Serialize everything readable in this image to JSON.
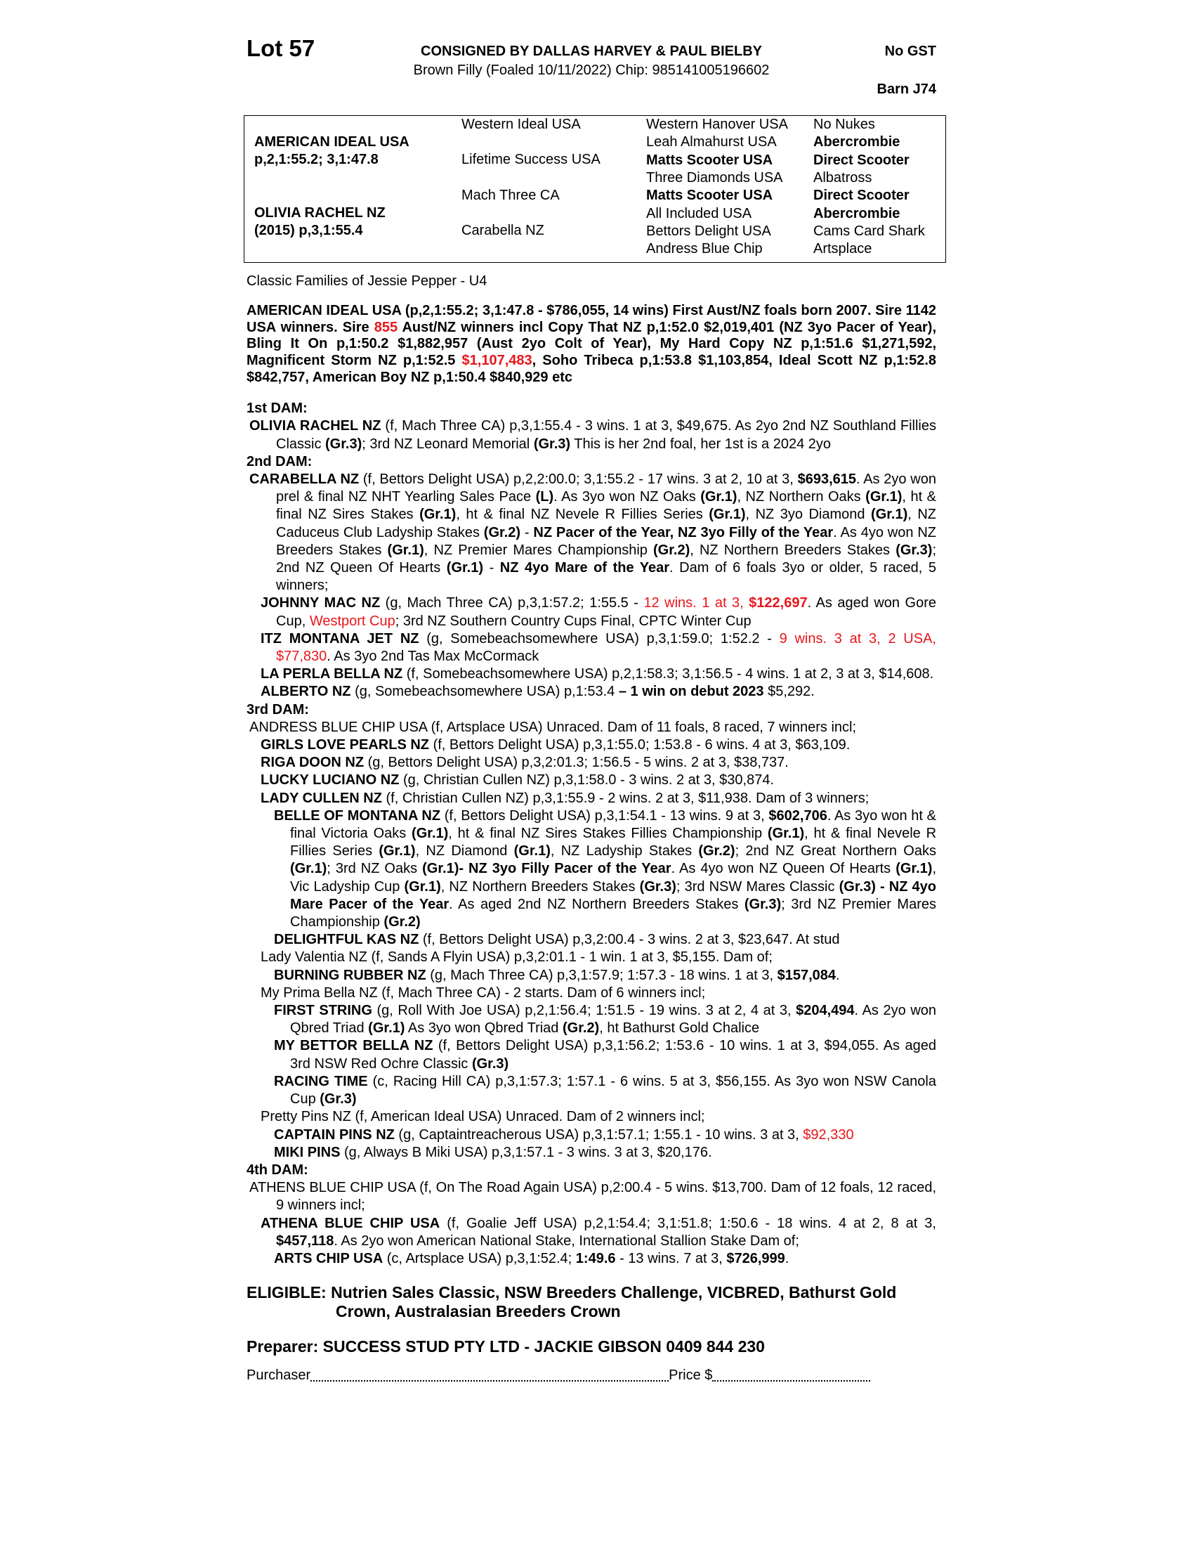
{
  "header": {
    "lot": "Lot 57",
    "consignor": "CONSIGNED BY DALLAS HARVEY & PAUL BIELBY",
    "description": "Brown Filly (Foaled 10/11/2022) Chip: 985141005196602",
    "gst": "No GST",
    "barn": "Barn J74"
  },
  "pedigree": {
    "sire": "AMERICAN IDEAL USA",
    "sire_record": "p,2,1:55.2; 3,1:47.8",
    "dam": "OLIVIA RACHEL NZ",
    "dam_record": "(2015) p,3,1:55.4",
    "gen2": [
      "Western Ideal USA",
      "Lifetime Success USA",
      "Mach Three CA",
      "Carabella NZ"
    ],
    "gen3": [
      {
        "t": "Western Hanover USA",
        "b": false
      },
      {
        "t": "Leah Almahurst USA",
        "b": false
      },
      {
        "t": "Matts Scooter USA",
        "b": true
      },
      {
        "t": "Three Diamonds USA",
        "b": false
      },
      {
        "t": "Matts Scooter USA",
        "b": true
      },
      {
        "t": "All Included USA",
        "b": false
      },
      {
        "t": "Bettors Delight USA",
        "b": false
      },
      {
        "t": "Andress Blue Chip",
        "b": false
      }
    ],
    "gen4": [
      {
        "t": "No Nukes",
        "b": false
      },
      {
        "t": "Abercrombie",
        "b": true
      },
      {
        "t": "Direct Scooter",
        "b": true
      },
      {
        "t": "Albatross",
        "b": false
      },
      {
        "t": "Direct Scooter",
        "b": true
      },
      {
        "t": "Abercrombie",
        "b": true
      },
      {
        "t": "Cams Card Shark",
        "b": false
      },
      {
        "t": "Artsplace",
        "b": false
      }
    ]
  },
  "family": "Classic Families of Jessie Pepper - U4",
  "sire_para": [
    {
      "t": "AMERICAN IDEAL USA (p,2,1:55.2; 3,1:47.8 - $786,055, 14 wins) First Aust/NZ foals born 2007. Sire 1142 USA winners. Sire ",
      "s": ""
    },
    {
      "t": "855",
      "s": "r"
    },
    {
      "t": " Aust/NZ winners incl Copy That NZ p,1:52.0 $2,019,401 (NZ 3yo Pacer of Year), Bling It On p,1:50.2 $1,882,957 (Aust 2yo Colt of Year), My Hard Copy NZ p,1:51.6 $1,271,592, Magnificent Storm NZ p,1:52.5 ",
      "s": ""
    },
    {
      "t": "$1,107,483",
      "s": "r"
    },
    {
      "t": ", Soho Tribeca p,1:53.8 $1,103,854, Ideal Scott NZ p,1:52.8 $842,757, American Boy NZ p,1:50.4 $840,929 etc",
      "s": ""
    }
  ],
  "colors": {
    "highlight_red": "#e8161b"
  },
  "dams": [
    {
      "heading": "1st DAM:",
      "entries": [
        {
          "level": 0,
          "segs": [
            {
              "t": "OLIVIA RACHEL NZ",
              "s": "b"
            },
            {
              "t": " (f, Mach Three CA) p,3,1:55.4 - 3 wins. 1 at 3, $49,675. As 2yo 2nd NZ Southland Fillies Classic ",
              "s": ""
            },
            {
              "t": "(Gr.3)",
              "s": "b"
            },
            {
              "t": "; 3rd NZ Leonard Memorial ",
              "s": ""
            },
            {
              "t": "(Gr.3)",
              "s": "b"
            },
            {
              "t": " This is her 2nd foal, her 1st is a 2024 2yo",
              "s": ""
            }
          ]
        }
      ]
    },
    {
      "heading": "2nd DAM:",
      "entries": [
        {
          "level": 0,
          "segs": [
            {
              "t": "CARABELLA NZ",
              "s": "b"
            },
            {
              "t": " (f, Bettors Delight USA) p,2,2:00.0; 3,1:55.2 - 17 wins. 3 at 2, 10 at 3, ",
              "s": ""
            },
            {
              "t": "$693,615",
              "s": "b"
            },
            {
              "t": ". As 2yo won prel & final NZ NHT Yearling Sales Pace ",
              "s": ""
            },
            {
              "t": "(L)",
              "s": "b"
            },
            {
              "t": ". As 3yo won NZ Oaks ",
              "s": ""
            },
            {
              "t": "(Gr.1)",
              "s": "b"
            },
            {
              "t": ", NZ Northern Oaks ",
              "s": ""
            },
            {
              "t": "(Gr.1)",
              "s": "b"
            },
            {
              "t": ", ht & final NZ Sires Stakes ",
              "s": ""
            },
            {
              "t": "(Gr.1)",
              "s": "b"
            },
            {
              "t": ", ht & final NZ Nevele R Fillies Series ",
              "s": ""
            },
            {
              "t": "(Gr.1)",
              "s": "b"
            },
            {
              "t": ", NZ 3yo Diamond ",
              "s": ""
            },
            {
              "t": "(Gr.1)",
              "s": "b"
            },
            {
              "t": ", NZ Caduceus Club Ladyship Stakes ",
              "s": ""
            },
            {
              "t": "(Gr.2)",
              "s": "b"
            },
            {
              "t": " - ",
              "s": ""
            },
            {
              "t": "NZ Pacer of the Year, NZ 3yo Filly of the Year",
              "s": "b"
            },
            {
              "t": ". As 4yo won NZ Breeders Stakes ",
              "s": ""
            },
            {
              "t": "(Gr.1)",
              "s": "b"
            },
            {
              "t": ", NZ Premier Mares Championship ",
              "s": ""
            },
            {
              "t": "(Gr.2)",
              "s": "b"
            },
            {
              "t": ", NZ Northern Breeders Stakes ",
              "s": ""
            },
            {
              "t": "(Gr.3)",
              "s": "b"
            },
            {
              "t": "; 2nd NZ Queen Of Hearts ",
              "s": ""
            },
            {
              "t": "(Gr.1)",
              "s": "b"
            },
            {
              "t": " - ",
              "s": ""
            },
            {
              "t": "NZ 4yo Mare of the Year",
              "s": "b"
            },
            {
              "t": ". Dam of 6 foals 3yo or older, 5 raced, 5 winners;",
              "s": ""
            }
          ]
        },
        {
          "level": 1,
          "segs": [
            {
              "t": "JOHNNY MAC NZ",
              "s": "b"
            },
            {
              "t": " (g, Mach Three CA) p,3,1:57.2; 1:55.5 - ",
              "s": ""
            },
            {
              "t": "12 wins. 1 at 3, ",
              "s": "r"
            },
            {
              "t": "$122,697",
              "s": "br"
            },
            {
              "t": ". As aged won Gore Cup, ",
              "s": ""
            },
            {
              "t": "Westport Cup",
              "s": "r"
            },
            {
              "t": "; 3rd NZ Southern Country Cups Final, CPTC Winter Cup",
              "s": ""
            }
          ]
        },
        {
          "level": 1,
          "segs": [
            {
              "t": "ITZ MONTANA JET NZ",
              "s": "b"
            },
            {
              "t": " (g, Somebeachsomewhere USA) p,3,1:59.0; 1:52.2 - ",
              "s": ""
            },
            {
              "t": "9 wins. 3 at 3, 2 USA, $77,830",
              "s": "r"
            },
            {
              "t": ". As 3yo 2nd Tas Max McCormack",
              "s": ""
            }
          ]
        },
        {
          "level": 1,
          "segs": [
            {
              "t": "LA PERLA BELLA NZ",
              "s": "b"
            },
            {
              "t": " (f, Somebeachsomewhere USA) p,2,1:58.3; 3,1:56.5 - 4 wins. 1 at 2, 3 at 3, $14,608.",
              "s": ""
            }
          ]
        },
        {
          "level": 1,
          "segs": [
            {
              "t": "ALBERTO NZ",
              "s": "b"
            },
            {
              "t": " (g, Somebeachsomewhere USA) p,1:53.4 ",
              "s": ""
            },
            {
              "t": "– 1 win on debut 2023",
              "s": "b"
            },
            {
              "t": " $5,292.",
              "s": ""
            }
          ]
        }
      ]
    },
    {
      "heading": "3rd DAM:",
      "entries": [
        {
          "level": 0,
          "segs": [
            {
              "t": "ANDRESS BLUE CHIP USA (f, Artsplace USA) Unraced. Dam of 11 foals, 8 raced, 7 winners incl;",
              "s": ""
            }
          ]
        },
        {
          "level": 1,
          "segs": [
            {
              "t": "GIRLS LOVE PEARLS NZ",
              "s": "b"
            },
            {
              "t": " (f, Bettors Delight USA) p,3,1:55.0; 1:53.8 - 6 wins. 4 at 3, $63,109.",
              "s": ""
            }
          ]
        },
        {
          "level": 1,
          "segs": [
            {
              "t": "RIGA DOON NZ",
              "s": "b"
            },
            {
              "t": " (g, Bettors Delight USA) p,3,2:01.3; 1:56.5 - 5 wins. 2 at 3, $38,737.",
              "s": ""
            }
          ]
        },
        {
          "level": 1,
          "segs": [
            {
              "t": "LUCKY LUCIANO NZ",
              "s": "b"
            },
            {
              "t": " (g, Christian Cullen NZ) p,3,1:58.0 - 3 wins. 2 at 3, $30,874.",
              "s": ""
            }
          ]
        },
        {
          "level": 1,
          "segs": [
            {
              "t": "LADY CULLEN NZ",
              "s": "b"
            },
            {
              "t": " (f, Christian Cullen NZ) p,3,1:55.9 - 2 wins. 2 at 3, $11,938. Dam of 3 winners;",
              "s": ""
            }
          ]
        },
        {
          "level": 2,
          "segs": [
            {
              "t": "BELLE OF MONTANA NZ",
              "s": "b"
            },
            {
              "t": " (f, Bettors Delight USA) p,3,1:54.1 - 13 wins. 9 at 3, ",
              "s": ""
            },
            {
              "t": "$602,706",
              "s": "b"
            },
            {
              "t": ". As 3yo won ht & final Victoria Oaks ",
              "s": ""
            },
            {
              "t": "(Gr.1)",
              "s": "b"
            },
            {
              "t": ", ht & final NZ Sires Stakes Fillies Championship ",
              "s": ""
            },
            {
              "t": "(Gr.1)",
              "s": "b"
            },
            {
              "t": ", ht & final Nevele R Fillies Series ",
              "s": ""
            },
            {
              "t": "(Gr.1)",
              "s": "b"
            },
            {
              "t": ", NZ Diamond ",
              "s": ""
            },
            {
              "t": "(Gr.1)",
              "s": "b"
            },
            {
              "t": ", NZ Ladyship Stakes ",
              "s": ""
            },
            {
              "t": "(Gr.2)",
              "s": "b"
            },
            {
              "t": "; 2nd NZ Great Northern Oaks ",
              "s": ""
            },
            {
              "t": "(Gr.1)",
              "s": "b"
            },
            {
              "t": "; 3rd NZ Oaks ",
              "s": ""
            },
            {
              "t": "(Gr.1)- NZ 3yo Filly Pacer of the Year",
              "s": "b"
            },
            {
              "t": ". As 4yo won NZ Queen Of Hearts ",
              "s": ""
            },
            {
              "t": "(Gr.1)",
              "s": "b"
            },
            {
              "t": ", Vic Ladyship Cup ",
              "s": ""
            },
            {
              "t": "(Gr.1)",
              "s": "b"
            },
            {
              "t": ", NZ Northern Breeders Stakes ",
              "s": ""
            },
            {
              "t": "(Gr.3)",
              "s": "b"
            },
            {
              "t": "; 3rd NSW Mares Classic ",
              "s": ""
            },
            {
              "t": "(Gr.3) - NZ 4yo Mare Pacer of the Year",
              "s": "b"
            },
            {
              "t": ". As aged 2nd NZ Northern Breeders Stakes ",
              "s": ""
            },
            {
              "t": "(Gr.3)",
              "s": "b"
            },
            {
              "t": "; 3rd NZ Premier Mares Championship ",
              "s": ""
            },
            {
              "t": "(Gr.2)",
              "s": "b"
            }
          ]
        },
        {
          "level": 2,
          "segs": [
            {
              "t": "DELIGHTFUL KAS NZ",
              "s": "b"
            },
            {
              "t": " (f, Bettors Delight USA) p,3,2:00.4 - 3 wins. 2 at 3, $23,647. At stud",
              "s": ""
            }
          ]
        },
        {
          "level": 1,
          "segs": [
            {
              "t": "Lady Valentia NZ (f, Sands A Flyin USA) p,3,2:01.1 - 1 win. 1 at 3, $5,155. Dam of;",
              "s": ""
            }
          ]
        },
        {
          "level": 2,
          "segs": [
            {
              "t": "BURNING RUBBER NZ",
              "s": "b"
            },
            {
              "t": " (g, Mach Three CA) p,3,1:57.9; 1:57.3 - 18 wins. 1 at 3, ",
              "s": ""
            },
            {
              "t": "$157,084",
              "s": "b"
            },
            {
              "t": ".",
              "s": ""
            }
          ]
        },
        {
          "level": 1,
          "segs": [
            {
              "t": "My Prima Bella NZ (f, Mach Three CA) - 2 starts. Dam of 6 winners incl;",
              "s": ""
            }
          ]
        },
        {
          "level": 2,
          "segs": [
            {
              "t": "FIRST STRING",
              "s": "b"
            },
            {
              "t": " (g, Roll With Joe USA) p,2,1:56.4; 1:51.5 - 19 wins. 3 at 2, 4 at 3, ",
              "s": ""
            },
            {
              "t": "$204,494",
              "s": "b"
            },
            {
              "t": ". As 2yo won Qbred Triad ",
              "s": ""
            },
            {
              "t": "(Gr.1)",
              "s": "b"
            },
            {
              "t": " As 3yo won Qbred Triad ",
              "s": ""
            },
            {
              "t": "(Gr.2)",
              "s": "b"
            },
            {
              "t": ", ht Bathurst Gold Chalice",
              "s": ""
            }
          ]
        },
        {
          "level": 2,
          "segs": [
            {
              "t": "MY BETTOR BELLA NZ",
              "s": "b"
            },
            {
              "t": " (f, Bettors Delight USA) p,3,1:56.2; 1:53.6 - 10 wins. 1 at 3, $94,055. As aged 3rd NSW Red Ochre Classic ",
              "s": ""
            },
            {
              "t": "(Gr.3)",
              "s": "b"
            }
          ]
        },
        {
          "level": 2,
          "segs": [
            {
              "t": "RACING TIME",
              "s": "b"
            },
            {
              "t": " (c, Racing Hill CA) p,3,1:57.3; 1:57.1 - 6 wins. 5 at 3, $56,155. As 3yo won NSW Canola Cup ",
              "s": ""
            },
            {
              "t": "(Gr.3)",
              "s": "b"
            }
          ]
        },
        {
          "level": 1,
          "segs": [
            {
              "t": "Pretty Pins NZ (f, American Ideal USA) Unraced. Dam of 2 winners incl;",
              "s": ""
            }
          ]
        },
        {
          "level": 2,
          "segs": [
            {
              "t": "CAPTAIN PINS NZ",
              "s": "b"
            },
            {
              "t": " (g, Captaintreacherous USA) p,3,1:57.1; 1:55.1 - 10 wins. 3 at 3, ",
              "s": ""
            },
            {
              "t": "$92,330",
              "s": "r"
            }
          ]
        },
        {
          "level": 2,
          "segs": [
            {
              "t": "MIKI PINS",
              "s": "b"
            },
            {
              "t": " (g, Always B Miki USA) p,3,1:57.1 - 3 wins. 3 at 3, $20,176.",
              "s": ""
            }
          ]
        }
      ]
    },
    {
      "heading": "4th DAM:",
      "entries": [
        {
          "level": 0,
          "segs": [
            {
              "t": "ATHENS BLUE CHIP USA (f, On The Road Again USA) p,2:00.4 - 5 wins. $13,700. Dam of 12 foals, 12 raced, 9 winners incl;",
              "s": ""
            }
          ]
        },
        {
          "level": 1,
          "segs": [
            {
              "t": "ATHENA BLUE CHIP USA",
              "s": "b"
            },
            {
              "t": " (f, Goalie Jeff USA) p,2,1:54.4; 3,1:51.8; 1:50.6 - 18 wins. 4 at 2, 8 at 3, ",
              "s": ""
            },
            {
              "t": "$457,118",
              "s": "b"
            },
            {
              "t": ". As 2yo won American National Stake, International Stallion Stake Dam of;",
              "s": ""
            }
          ]
        },
        {
          "level": 2,
          "segs": [
            {
              "t": "ARTS CHIP USA",
              "s": "b"
            },
            {
              "t": " (c, Artsplace USA) p,3,1:52.4; ",
              "s": ""
            },
            {
              "t": "1:49.6",
              "s": "b"
            },
            {
              "t": " - 13 wins. 7 at 3, ",
              "s": ""
            },
            {
              "t": "$726,999",
              "s": "b"
            },
            {
              "t": ".",
              "s": ""
            }
          ]
        }
      ]
    }
  ],
  "eligible": "ELIGIBLE: Nutrien Sales Classic, NSW Breeders Challenge, VICBRED, Bathurst Gold Crown, Australasian Breeders Crown",
  "preparer": "Preparer: SUCCESS STUD PTY LTD - JACKIE GIBSON 0409 844 230",
  "purchaser": {
    "label": "Purchaser",
    "price_label": "Price $"
  }
}
